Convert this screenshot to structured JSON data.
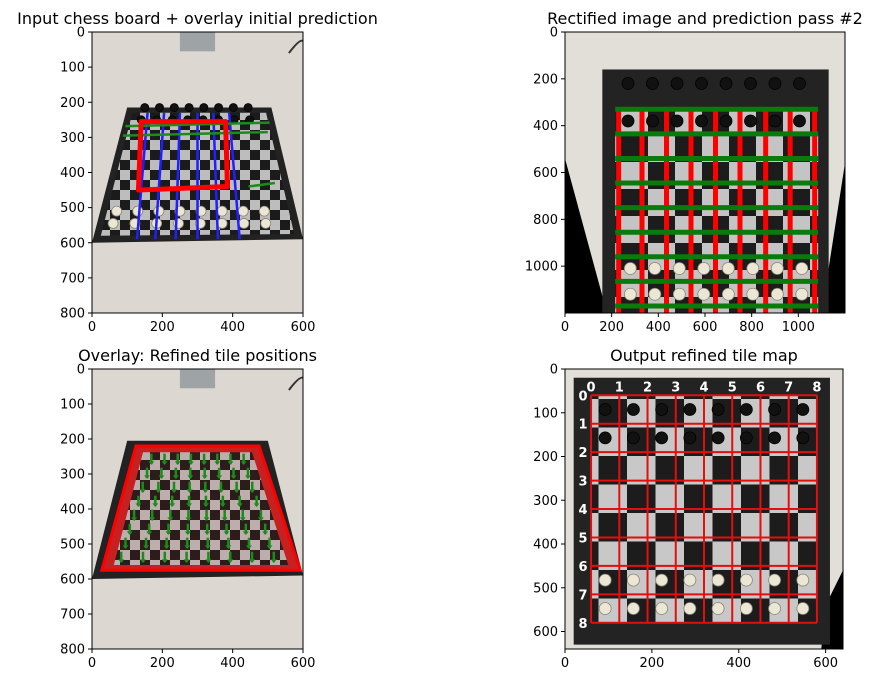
{
  "chart_data": [
    {
      "type": "image",
      "title": "Input chess board + overlay initial prediction",
      "xlim": [
        0,
        600
      ],
      "ylim": [
        800,
        0
      ],
      "xticks": [
        0,
        200,
        400,
        600
      ],
      "yticks": [
        0,
        100,
        200,
        300,
        400,
        500,
        600,
        700,
        800
      ],
      "overlay": {
        "quad": [
          [
            140,
            255
          ],
          [
            380,
            255
          ],
          [
            385,
            440
          ],
          [
            132,
            450
          ]
        ],
        "quad_color": "#ff0000",
        "blue_lines": [
          [
            [
              158,
              230
            ],
            [
              128,
              590
            ]
          ],
          [
            [
              205,
              230
            ],
            [
              180,
              590
            ]
          ],
          [
            [
              250,
              230
            ],
            [
              238,
              590
            ]
          ],
          [
            [
              300,
              230
            ],
            [
              300,
              590
            ]
          ],
          [
            [
              345,
              230
            ],
            [
              358,
              590
            ]
          ],
          [
            [
              390,
              230
            ],
            [
              420,
              590
            ]
          ]
        ],
        "green_lines": [
          [
            [
              95,
              268
            ],
            [
              505,
              258
            ]
          ],
          [
            [
              88,
              295
            ],
            [
              500,
              285
            ]
          ],
          [
            [
              445,
              440
            ],
            [
              520,
              430
            ]
          ]
        ],
        "blue_color": "#1f1fff",
        "green_color": "#1a8c1a"
      }
    },
    {
      "type": "image",
      "title": "Rectified image and prediction pass #2",
      "xlim": [
        0,
        1200
      ],
      "ylim": [
        1200,
        0
      ],
      "xticks": [
        0,
        200,
        400,
        600,
        800,
        1000
      ],
      "yticks": [
        0,
        200,
        400,
        600,
        800,
        1000
      ],
      "overlay": {
        "red_x": [
          230,
          330,
          435,
          540,
          645,
          750,
          860,
          965,
          1070
        ],
        "green_y": [
          330,
          435,
          540,
          645,
          750,
          855,
          960,
          1065,
          1170
        ],
        "x_range": [
          215,
          1085
        ],
        "y_range": [
          330,
          1200
        ],
        "red_color": "#ff0000",
        "green_color": "#0a7a0a"
      }
    },
    {
      "type": "image",
      "title": "Overlay: Refined tile positions",
      "xlim": [
        0,
        600
      ],
      "ylim": [
        800,
        0
      ],
      "xticks": [
        0,
        200,
        400,
        600
      ],
      "yticks": [
        0,
        100,
        200,
        300,
        400,
        500,
        600,
        700,
        800
      ],
      "overlay": {
        "board_quad": [
          [
            125,
            220
          ],
          [
            475,
            220
          ],
          [
            592,
            575
          ],
          [
            28,
            575
          ]
        ],
        "quad_color": "#ff0000",
        "tile_color": "#1a8c1a"
      }
    },
    {
      "type": "image",
      "title": "Output refined tile map",
      "xlim": [
        0,
        640
      ],
      "ylim": [
        640,
        0
      ],
      "xticks": [
        0,
        200,
        400,
        600
      ],
      "yticks": [
        0,
        100,
        200,
        300,
        400,
        500,
        600
      ],
      "grid": {
        "origin": [
          60,
          60
        ],
        "cell": 65,
        "count": 8,
        "labels": [
          "0",
          "1",
          "2",
          "3",
          "4",
          "5",
          "6",
          "7",
          "8"
        ],
        "line_color": "#e01010"
      }
    }
  ]
}
